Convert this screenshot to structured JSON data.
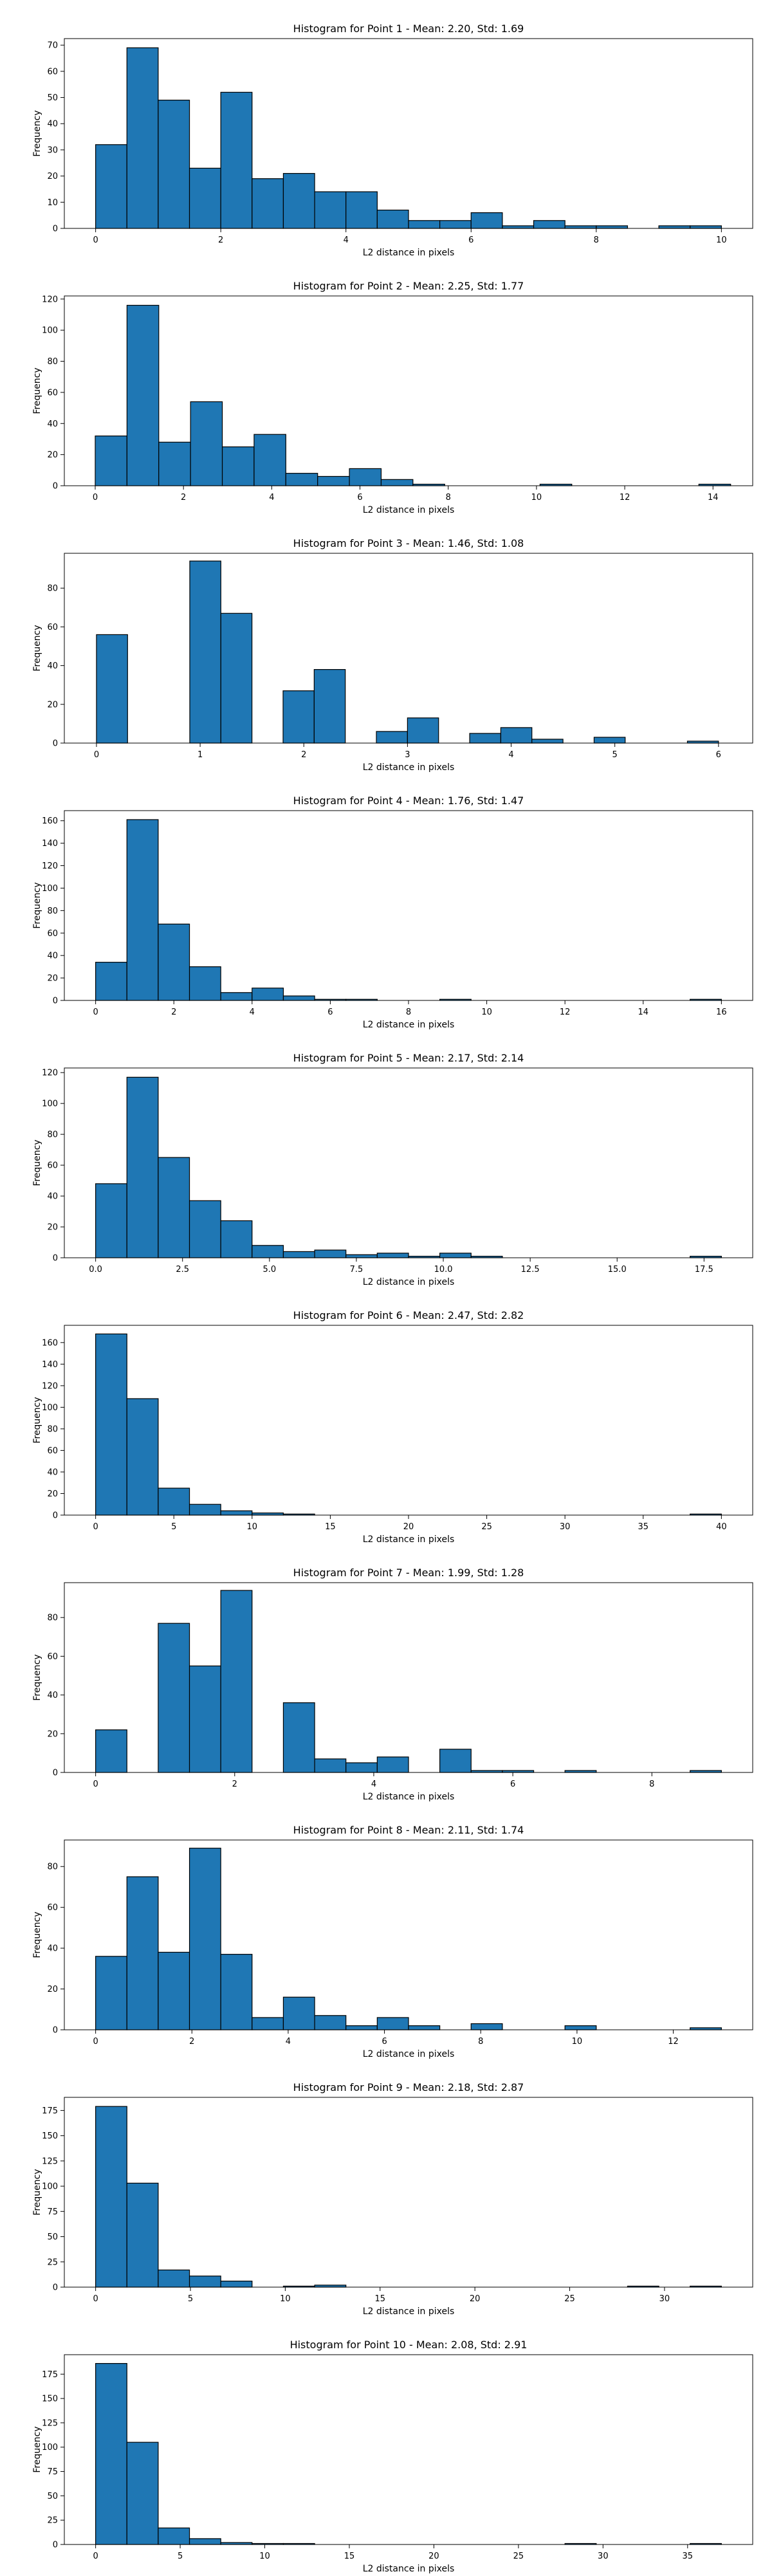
{
  "chart_data": [
    {
      "type": "bar",
      "title": "Histogram for Point 1 - Mean: 2.20, Std: 1.69",
      "xlabel": "L2 distance in pixels",
      "ylabel": "Frequency",
      "xlim": [
        -0.5,
        10.5
      ],
      "ylim": [
        0,
        72.5
      ],
      "bin_edges": [
        0,
        0.5,
        1,
        1.5,
        2,
        2.5,
        3,
        3.5,
        4,
        4.5,
        5,
        5.5,
        6,
        6.5,
        7,
        7.5,
        8,
        8.5,
        9,
        9.5,
        10
      ],
      "values": [
        32,
        69,
        49,
        23,
        52,
        19,
        21,
        14,
        14,
        7,
        3,
        3,
        6,
        1,
        3,
        1,
        1,
        0,
        1,
        1
      ],
      "xticks": [
        0,
        2,
        4,
        6,
        8,
        10
      ],
      "xtick_labels": [
        "0",
        "2",
        "4",
        "6",
        "8",
        "10"
      ],
      "yticks": [
        0,
        10,
        20,
        30,
        40,
        50,
        60,
        70
      ],
      "ytick_labels": [
        "0",
        "10",
        "20",
        "30",
        "40",
        "50",
        "60",
        "70"
      ],
      "grid": false,
      "bar_color": "#1f77b4",
      "edge_color": "#000000"
    },
    {
      "type": "bar",
      "title": "Histogram for Point 2 - Mean: 2.25, Std: 1.77",
      "xlabel": "L2 distance in pixels",
      "ylabel": "Frequency",
      "xlim": [
        -0.7,
        14.9
      ],
      "ylim": [
        0,
        122
      ],
      "bin_edges": [
        0,
        0.72,
        1.44,
        2.16,
        2.88,
        3.6,
        4.32,
        5.04,
        5.76,
        6.48,
        7.2,
        7.92,
        8.64,
        9.36,
        10.08,
        10.8,
        11.52,
        12.24,
        12.96,
        13.68,
        14.4
      ],
      "values": [
        32,
        116,
        28,
        54,
        25,
        33,
        8,
        6,
        11,
        4,
        1,
        0,
        0,
        0,
        1,
        0,
        0,
        0,
        0,
        1
      ],
      "xticks": [
        0,
        2,
        4,
        6,
        8,
        10,
        12,
        14
      ],
      "xtick_labels": [
        "0",
        "2",
        "4",
        "6",
        "8",
        "10",
        "12",
        "14"
      ],
      "yticks": [
        0,
        20,
        40,
        60,
        80,
        100,
        120
      ],
      "ytick_labels": [
        "0",
        "20",
        "40",
        "60",
        "80",
        "100",
        "120"
      ],
      "grid": false,
      "bar_color": "#1f77b4",
      "edge_color": "#000000"
    },
    {
      "type": "bar",
      "title": "Histogram for Point 3 - Mean: 1.46, Std: 1.08",
      "xlabel": "L2 distance in pixels",
      "ylabel": "Frequency",
      "xlim": [
        -0.31,
        6.33
      ],
      "ylim": [
        0,
        98
      ],
      "bin_edges": [
        0,
        0.3,
        0.6,
        0.9,
        1.2,
        1.5,
        1.8,
        2.1,
        2.4,
        2.7,
        3.0,
        3.3,
        3.6,
        3.9,
        4.2,
        4.5,
        4.8,
        5.1,
        5.4,
        5.7,
        6.0
      ],
      "values": [
        56,
        0,
        0,
        94,
        67,
        0,
        27,
        38,
        0,
        6,
        13,
        0,
        5,
        8,
        2,
        0,
        3,
        0,
        0,
        1
      ],
      "xticks": [
        0,
        1,
        2,
        3,
        4,
        5,
        6
      ],
      "xtick_labels": [
        "0",
        "1",
        "2",
        "3",
        "4",
        "5",
        "6"
      ],
      "yticks": [
        0,
        20,
        40,
        60,
        80
      ],
      "ytick_labels": [
        "0",
        "20",
        "40",
        "60",
        "80"
      ],
      "grid": false,
      "bar_color": "#1f77b4",
      "edge_color": "#000000"
    },
    {
      "type": "bar",
      "title": "Histogram for Point 4 - Mean: 1.76, Std: 1.47",
      "xlabel": "L2 distance in pixels",
      "ylabel": "Frequency",
      "xlim": [
        -0.8,
        16.8
      ],
      "ylim": [
        0,
        169
      ],
      "bin_edges": [
        0,
        0.8,
        1.6,
        2.4,
        3.2,
        4.0,
        4.8,
        5.6,
        6.4,
        7.2,
        8.0,
        8.8,
        9.6,
        10.4,
        11.2,
        12.0,
        12.8,
        13.6,
        14.4,
        15.2,
        16.0
      ],
      "values": [
        34,
        161,
        68,
        30,
        7,
        11,
        4,
        1,
        1,
        0,
        0,
        1,
        0,
        0,
        0,
        0,
        0,
        0,
        0,
        1
      ],
      "xticks": [
        0,
        2,
        4,
        6,
        8,
        10,
        12,
        14,
        16
      ],
      "xtick_labels": [
        "0",
        "2",
        "4",
        "6",
        "8",
        "10",
        "12",
        "14",
        "16"
      ],
      "yticks": [
        0,
        20,
        40,
        60,
        80,
        100,
        120,
        140,
        160
      ],
      "ytick_labels": [
        "0",
        "20",
        "40",
        "60",
        "80",
        "100",
        "120",
        "140",
        "160"
      ],
      "grid": false,
      "bar_color": "#1f77b4",
      "edge_color": "#000000"
    },
    {
      "type": "bar",
      "title": "Histogram for Point 5 - Mean: 2.17, Std: 2.14",
      "xlabel": "L2 distance in pixels",
      "ylabel": "Frequency",
      "xlim": [
        -0.9,
        18.9
      ],
      "ylim": [
        0,
        123
      ],
      "bin_edges": [
        0,
        0.9,
        1.8,
        2.7,
        3.6,
        4.5,
        5.4,
        6.3,
        7.2,
        8.1,
        9.0,
        9.9,
        10.8,
        11.7,
        12.6,
        13.5,
        14.4,
        15.3,
        16.2,
        17.1,
        18.0
      ],
      "values": [
        48,
        117,
        65,
        37,
        24,
        8,
        4,
        5,
        2,
        3,
        1,
        3,
        1,
        0,
        0,
        0,
        0,
        0,
        0,
        1
      ],
      "xticks": [
        0,
        2.5,
        5,
        7.5,
        10,
        12.5,
        15,
        17.5
      ],
      "xtick_labels": [
        "0.0",
        "2.5",
        "5.0",
        "7.5",
        "10.0",
        "12.5",
        "15.0",
        "17.5"
      ],
      "yticks": [
        0,
        20,
        40,
        60,
        80,
        100,
        120
      ],
      "ytick_labels": [
        "0",
        "20",
        "40",
        "60",
        "80",
        "100",
        "120"
      ],
      "grid": false,
      "bar_color": "#1f77b4",
      "edge_color": "#000000"
    },
    {
      "type": "bar",
      "title": "Histogram for Point 6 - Mean: 2.47, Std: 2.82",
      "xlabel": "L2 distance in pixels",
      "ylabel": "Frequency",
      "xlim": [
        -2,
        42
      ],
      "ylim": [
        0,
        176
      ],
      "bin_edges": [
        0,
        2,
        4,
        6,
        8,
        10,
        12,
        14,
        16,
        18,
        20,
        22,
        24,
        26,
        28,
        30,
        32,
        34,
        36,
        38,
        40
      ],
      "values": [
        168,
        108,
        25,
        10,
        4,
        2,
        1,
        0,
        0,
        0,
        0,
        0,
        0,
        0,
        0,
        0,
        0,
        0,
        0,
        1
      ],
      "xticks": [
        0,
        5,
        10,
        15,
        20,
        25,
        30,
        35,
        40
      ],
      "xtick_labels": [
        "0",
        "5",
        "10",
        "15",
        "20",
        "25",
        "30",
        "35",
        "40"
      ],
      "yticks": [
        0,
        20,
        40,
        60,
        80,
        100,
        120,
        140,
        160
      ],
      "ytick_labels": [
        "0",
        "20",
        "40",
        "60",
        "80",
        "100",
        "120",
        "140",
        "160"
      ],
      "grid": false,
      "bar_color": "#1f77b4",
      "edge_color": "#000000"
    },
    {
      "type": "bar",
      "title": "Histogram for Point 7 - Mean: 1.99, Std: 1.28",
      "xlabel": "L2 distance in pixels",
      "ylabel": "Frequency",
      "xlim": [
        -0.45,
        9.45
      ],
      "ylim": [
        0,
        98
      ],
      "bin_edges": [
        0,
        0.45,
        0.9,
        1.35,
        1.8,
        2.25,
        2.7,
        3.15,
        3.6,
        4.05,
        4.5,
        4.95,
        5.4,
        5.85,
        6.3,
        6.75,
        7.2,
        7.65,
        8.1,
        8.55,
        9.0
      ],
      "values": [
        22,
        0,
        77,
        55,
        94,
        0,
        36,
        7,
        5,
        8,
        0,
        12,
        1,
        1,
        0,
        1,
        0,
        0,
        0,
        1
      ],
      "xticks": [
        0,
        2,
        4,
        6,
        8
      ],
      "xtick_labels": [
        "0",
        "2",
        "4",
        "6",
        "8"
      ],
      "yticks": [
        0,
        20,
        40,
        60,
        80
      ],
      "ytick_labels": [
        "0",
        "20",
        "40",
        "60",
        "80"
      ],
      "grid": false,
      "bar_color": "#1f77b4",
      "edge_color": "#000000"
    },
    {
      "type": "bar",
      "title": "Histogram for Point 8 - Mean: 2.11, Std: 1.74",
      "xlabel": "L2 distance in pixels",
      "ylabel": "Frequency",
      "xlim": [
        -0.65,
        13.65
      ],
      "ylim": [
        0,
        93
      ],
      "bin_edges": [
        0,
        0.65,
        1.3,
        1.95,
        2.6,
        3.25,
        3.9,
        4.55,
        5.2,
        5.85,
        6.5,
        7.15,
        7.8,
        8.45,
        9.1,
        9.75,
        10.4,
        11.05,
        11.7,
        12.35,
        13.0
      ],
      "values": [
        36,
        75,
        38,
        89,
        37,
        6,
        16,
        7,
        2,
        6,
        2,
        0,
        3,
        0,
        0,
        2,
        0,
        0,
        0,
        1
      ],
      "xticks": [
        0,
        2,
        4,
        6,
        8,
        10,
        12
      ],
      "xtick_labels": [
        "0",
        "2",
        "4",
        "6",
        "8",
        "10",
        "12"
      ],
      "yticks": [
        0,
        20,
        40,
        60,
        80
      ],
      "ytick_labels": [
        "0",
        "20",
        "40",
        "60",
        "80"
      ],
      "grid": false,
      "bar_color": "#1f77b4",
      "edge_color": "#000000"
    },
    {
      "type": "bar",
      "title": "Histogram for Point 9 - Mean: 2.18, Std: 2.87",
      "xlabel": "L2 distance in pixels",
      "ylabel": "Frequency",
      "xlim": [
        -1.65,
        34.65
      ],
      "ylim": [
        0,
        188
      ],
      "bin_edges": [
        0,
        1.65,
        3.3,
        4.95,
        6.6,
        8.25,
        9.9,
        11.55,
        13.2,
        14.85,
        16.5,
        18.15,
        19.8,
        21.45,
        23.1,
        24.75,
        26.4,
        28.05,
        29.7,
        31.35,
        33.0
      ],
      "values": [
        179,
        103,
        17,
        11,
        6,
        0,
        1,
        2,
        0,
        0,
        0,
        0,
        0,
        0,
        0,
        0,
        0,
        1,
        0,
        1
      ],
      "xticks": [
        0,
        5,
        10,
        15,
        20,
        25,
        30
      ],
      "xtick_labels": [
        "0",
        "5",
        "10",
        "15",
        "20",
        "25",
        "30"
      ],
      "yticks": [
        0,
        25,
        50,
        75,
        100,
        125,
        150,
        175
      ],
      "ytick_labels": [
        "0",
        "25",
        "50",
        "75",
        "100",
        "125",
        "150",
        "175"
      ],
      "grid": false,
      "bar_color": "#1f77b4",
      "edge_color": "#000000"
    },
    {
      "type": "bar",
      "title": "Histogram for Point 10 - Mean: 2.08, Std: 2.91",
      "xlabel": "L2 distance in pixels",
      "ylabel": "Frequency",
      "xlim": [
        -1.85,
        38.85
      ],
      "ylim": [
        0,
        195
      ],
      "bin_edges": [
        0,
        1.85,
        3.7,
        5.55,
        7.4,
        9.25,
        11.1,
        12.95,
        14.8,
        16.65,
        18.5,
        20.35,
        22.2,
        24.05,
        25.9,
        27.75,
        29.6,
        31.45,
        33.3,
        35.15,
        37.0
      ],
      "values": [
        186,
        105,
        17,
        6,
        2,
        1,
        1,
        0,
        0,
        0,
        0,
        0,
        0,
        0,
        0,
        1,
        0,
        0,
        0,
        1
      ],
      "xticks": [
        0,
        5,
        10,
        15,
        20,
        25,
        30,
        35
      ],
      "xtick_labels": [
        "0",
        "5",
        "10",
        "15",
        "20",
        "25",
        "30",
        "35"
      ],
      "yticks": [
        0,
        25,
        50,
        75,
        100,
        125,
        150,
        175
      ],
      "ytick_labels": [
        "0",
        "25",
        "50",
        "75",
        "100",
        "125",
        "150",
        "175"
      ],
      "grid": false,
      "bar_color": "#1f77b4",
      "edge_color": "#000000"
    }
  ]
}
